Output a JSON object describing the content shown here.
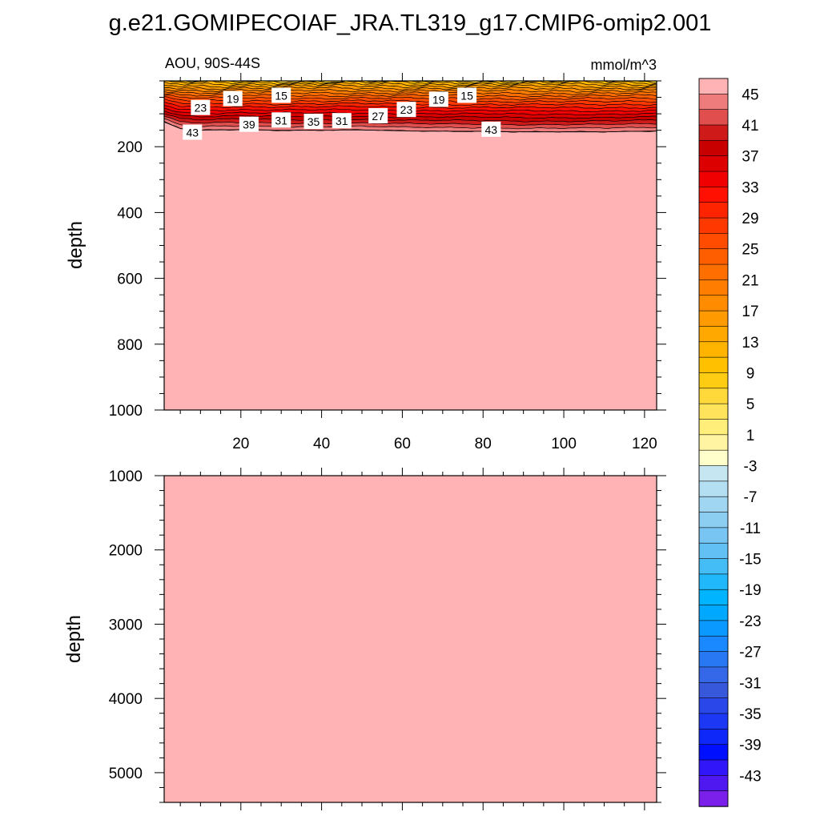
{
  "title": "g.e21.GOMIPECOIAF_JRA.TL319_g17.CMIP6-omip2.001",
  "chart_data": [
    {
      "type": "contour",
      "panel": "upper",
      "left_string": "AOU, 90S-44S",
      "right_string": "mmol/m^3",
      "ylabel": "depth",
      "xlabel": "",
      "xlim": [
        1,
        123
      ],
      "ylim": [
        1000,
        0
      ],
      "xticks": [
        20,
        40,
        60,
        80,
        100,
        120
      ],
      "yticks": [
        200,
        400,
        600,
        800,
        1000
      ],
      "background_value": 47,
      "bottom_of_gradient_depth": [
        {
          "x": 1,
          "depth": 125
        },
        {
          "x": 5,
          "depth": 145
        },
        {
          "x": 10,
          "depth": 150
        },
        {
          "x": 20,
          "depth": 148
        },
        {
          "x": 30,
          "depth": 150
        },
        {
          "x": 40,
          "depth": 150
        },
        {
          "x": 50,
          "depth": 149
        },
        {
          "x": 60,
          "depth": 152
        },
        {
          "x": 70,
          "depth": 153
        },
        {
          "x": 80,
          "depth": 153
        },
        {
          "x": 90,
          "depth": 155
        },
        {
          "x": 100,
          "depth": 155
        },
        {
          "x": 110,
          "depth": 155
        },
        {
          "x": 123,
          "depth": 152
        }
      ],
      "contour_labels": [
        {
          "text": "15",
          "x": 30,
          "depth": 45
        },
        {
          "text": "15",
          "x": 76,
          "depth": 45
        },
        {
          "text": "19",
          "x": 18,
          "depth": 55
        },
        {
          "text": "19",
          "x": 69,
          "depth": 57
        },
        {
          "text": "23",
          "x": 10,
          "depth": 82
        },
        {
          "text": "23",
          "x": 61,
          "depth": 88
        },
        {
          "text": "27",
          "x": 54,
          "depth": 107
        },
        {
          "text": "31",
          "x": 30,
          "depth": 120
        },
        {
          "text": "35",
          "x": 38,
          "depth": 124
        },
        {
          "text": "31",
          "x": 45,
          "depth": 122
        },
        {
          "text": "39",
          "x": 22,
          "depth": 133
        },
        {
          "text": "43",
          "x": 8,
          "depth": 157
        },
        {
          "text": "43",
          "x": 82,
          "depth": 148
        }
      ]
    },
    {
      "type": "contour",
      "panel": "lower",
      "ylabel": "depth",
      "xlabel": "",
      "xlim": [
        1,
        123
      ],
      "ylim": [
        5400,
        1000
      ],
      "yticks": [
        1000,
        2000,
        3000,
        4000,
        5000
      ],
      "background_value": 47
    }
  ],
  "colorbar": {
    "tick_labels": [
      "45",
      "41",
      "37",
      "33",
      "29",
      "25",
      "21",
      "17",
      "13",
      "9",
      "5",
      "1",
      "-3",
      "-7",
      "-11",
      "-15",
      "-19",
      "-23",
      "-27",
      "-31",
      "-35",
      "-39",
      "-43"
    ],
    "levels_top_to_bottom": [
      47,
      45,
      43,
      41,
      39,
      37,
      35,
      33,
      31,
      29,
      27,
      25,
      23,
      21,
      19,
      17,
      15,
      13,
      11,
      9,
      7,
      5,
      3,
      1,
      -1,
      -3,
      -5,
      -7,
      -9,
      -11,
      -13,
      -15,
      -17,
      -19,
      -21,
      -23,
      -25,
      -27,
      -29,
      -31,
      -33,
      -35,
      -37,
      -39,
      -41,
      -43,
      -45
    ],
    "colors_top_to_bottom": [
      "#ffb3b5",
      "#ef7c7c",
      "#e04e4e",
      "#cf1a1a",
      "#c80000",
      "#dc0000",
      "#f00000",
      "#ff1000",
      "#ff2400",
      "#ff3800",
      "#ff4c00",
      "#ff5e00",
      "#ff6e00",
      "#ff7d00",
      "#ff8c00",
      "#ff9a00",
      "#ffa800",
      "#ffb400",
      "#ffc000",
      "#ffcc14",
      "#ffd83a",
      "#ffe35a",
      "#ffee7a",
      "#fff4a2",
      "#ffffcc",
      "#c6e6f2",
      "#b4def2",
      "#a0d6f2",
      "#8ccdf2",
      "#78c4f2",
      "#62c0f4",
      "#44bcf6",
      "#20b8fa",
      "#00b4ff",
      "#00a8ff",
      "#0a9aff",
      "#1a88ff",
      "#2878f4",
      "#3468e8",
      "#3858dc",
      "#2a48ea",
      "#1c38f4",
      "#0e28fa",
      "#0010ff",
      "#3016f8",
      "#5018f0",
      "#7a20ea"
    ]
  }
}
